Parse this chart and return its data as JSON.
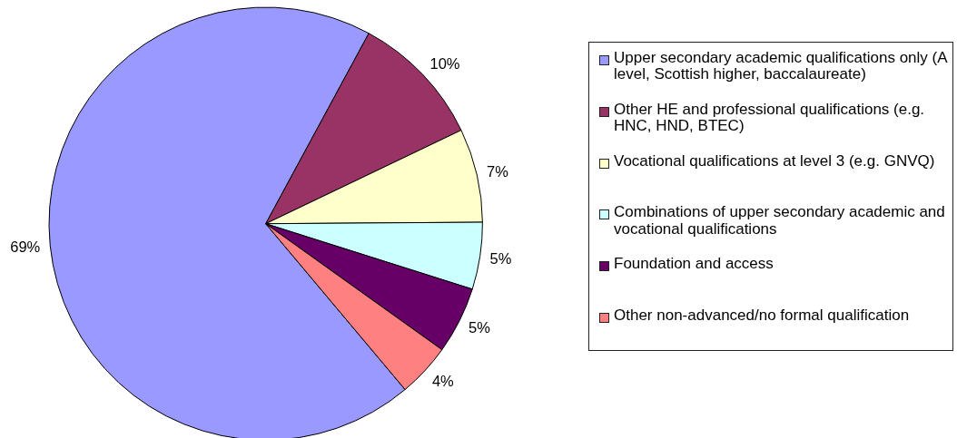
{
  "chart_data": {
    "type": "pie",
    "categories": [
      "Upper secondary academic qualifications only (A level, Scottish higher, baccalaureate)",
      "Other HE and professional qualifications (e.g. HNC, HND, BTEC)",
      "Vocational qualifications at level 3 (e.g. GNVQ)",
      "Combinations of upper secondary academic and vocational qualifications",
      "Foundation and access",
      "Other non-advanced/no formal qualification"
    ],
    "values": [
      69,
      10,
      7,
      5,
      5,
      4
    ],
    "colors": [
      "#9999ff",
      "#993366",
      "#ffffcc",
      "#ccffff",
      "#660066",
      "#ff8080"
    ],
    "value_labels": [
      "69%",
      "10%",
      "7%",
      "5%",
      "5%",
      "4%"
    ],
    "legend": "right"
  }
}
